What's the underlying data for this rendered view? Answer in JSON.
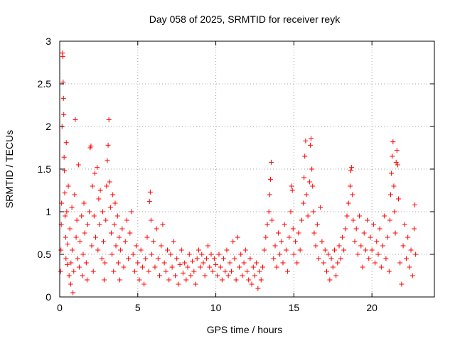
{
  "chart_data": {
    "type": "scatter",
    "title": "Day 058 of 2025, SRMTID for receiver reyk",
    "xlabel": "GPS time / hours",
    "ylabel": "SRMTID / TECUs",
    "xlim": [
      0,
      24
    ],
    "ylim": [
      0,
      3
    ],
    "xticks": [
      0,
      5,
      10,
      15,
      20
    ],
    "xtick_labels": [
      "0",
      "5",
      "10",
      "15",
      "20"
    ],
    "yticks": [
      0,
      0.5,
      1,
      1.5,
      2,
      2.5,
      3
    ],
    "ytick_labels": [
      "0",
      "0.5",
      "1",
      "1.5",
      "2",
      "2.5",
      "3"
    ],
    "grid": true,
    "marker": "+",
    "color": "#ff0000",
    "series": [
      {
        "name": "SRMTID",
        "points": [
          [
            0.05,
            0.3
          ],
          [
            0.08,
            0.55
          ],
          [
            0.1,
            0.85
          ],
          [
            0.12,
            1.1
          ],
          [
            0.15,
            2.0
          ],
          [
            0.18,
            2.86
          ],
          [
            0.2,
            2.82
          ],
          [
            0.22,
            2.52
          ],
          [
            0.24,
            2.33
          ],
          [
            0.26,
            2.14
          ],
          [
            0.28,
            1.64
          ],
          [
            0.3,
            1.48
          ],
          [
            0.32,
            1.22
          ],
          [
            0.35,
            0.95
          ],
          [
            0.38,
            0.7
          ],
          [
            0.4,
            0.45
          ],
          [
            0.42,
            1.81
          ],
          [
            0.45,
            1.0
          ],
          [
            0.48,
            0.38
          ],
          [
            0.5,
            0.62
          ],
          [
            0.55,
            1.3
          ],
          [
            0.6,
            0.25
          ],
          [
            0.65,
            0.8
          ],
          [
            0.7,
            0.15
          ],
          [
            0.72,
            0.4
          ],
          [
            0.78,
            1.05
          ],
          [
            0.8,
            0.55
          ],
          [
            0.85,
            0.05
          ],
          [
            0.9,
            0.3
          ],
          [
            0.95,
            1.2
          ],
          [
            1.0,
            2.08
          ],
          [
            1.05,
            0.7
          ],
          [
            1.1,
            0.9
          ],
          [
            1.15,
            0.45
          ],
          [
            1.2,
            1.55
          ],
          [
            1.25,
            0.35
          ],
          [
            1.3,
            0.65
          ],
          [
            1.4,
            0.95
          ],
          [
            1.45,
            0.25
          ],
          [
            1.5,
            0.5
          ],
          [
            1.55,
            1.1
          ],
          [
            1.6,
            0.75
          ],
          [
            1.7,
            0.4
          ],
          [
            1.75,
            0.2
          ],
          [
            1.8,
            0.85
          ],
          [
            1.9,
            1.0
          ],
          [
            1.95,
            1.75
          ],
          [
            2.0,
            1.77
          ],
          [
            2.05,
            0.6
          ],
          [
            2.1,
            1.3
          ],
          [
            2.15,
            0.3
          ],
          [
            2.2,
            0.95
          ],
          [
            2.25,
            1.45
          ],
          [
            2.3,
            0.7
          ],
          [
            2.4,
            1.52
          ],
          [
            2.45,
            0.55
          ],
          [
            2.5,
            1.15
          ],
          [
            2.55,
            0.85
          ],
          [
            2.6,
            1.25
          ],
          [
            2.7,
            0.45
          ],
          [
            2.75,
            1.0
          ],
          [
            2.8,
            0.65
          ],
          [
            2.85,
            0.2
          ],
          [
            2.9,
            0.4
          ],
          [
            2.95,
            0.9
          ],
          [
            3.0,
            1.3
          ],
          [
            3.05,
            1.6
          ],
          [
            3.1,
            1.78
          ],
          [
            3.15,
            2.08
          ],
          [
            3.2,
            1.35
          ],
          [
            3.25,
            1.05
          ],
          [
            3.3,
            0.75
          ],
          [
            3.35,
            0.5
          ],
          [
            3.4,
            1.2
          ],
          [
            3.45,
            0.3
          ],
          [
            3.5,
            0.85
          ],
          [
            3.55,
            1.1
          ],
          [
            3.6,
            0.6
          ],
          [
            3.7,
            0.95
          ],
          [
            3.75,
            0.4
          ],
          [
            3.8,
            0.7
          ],
          [
            3.85,
            0.2
          ],
          [
            3.9,
            0.55
          ],
          [
            4.0,
            0.8
          ],
          [
            4.1,
            0.35
          ],
          [
            4.2,
            0.65
          ],
          [
            4.3,
            0.9
          ],
          [
            4.4,
            0.45
          ],
          [
            4.5,
            0.75
          ],
          [
            4.6,
            1.0
          ],
          [
            4.7,
            0.5
          ],
          [
            4.8,
            0.3
          ],
          [
            4.9,
            0.6
          ],
          [
            5.0,
            0.4
          ],
          [
            5.1,
            0.2
          ],
          [
            5.2,
            0.55
          ],
          [
            5.3,
            0.35
          ],
          [
            5.4,
            0.15
          ],
          [
            5.5,
            0.45
          ],
          [
            5.6,
            0.7
          ],
          [
            5.7,
            0.3
          ],
          [
            5.75,
            1.12
          ],
          [
            5.8,
            1.23
          ],
          [
            5.85,
            0.9
          ],
          [
            5.9,
            0.5
          ],
          [
            6.0,
            0.65
          ],
          [
            6.1,
            0.35
          ],
          [
            6.2,
            0.8
          ],
          [
            6.3,
            0.45
          ],
          [
            6.4,
            0.25
          ],
          [
            6.5,
            0.6
          ],
          [
            6.6,
            0.85
          ],
          [
            6.7,
            0.4
          ],
          [
            6.8,
            0.3
          ],
          [
            6.9,
            0.55
          ],
          [
            7.0,
            0.2
          ],
          [
            7.1,
            0.5
          ],
          [
            7.2,
            0.35
          ],
          [
            7.3,
            0.65
          ],
          [
            7.4,
            0.25
          ],
          [
            7.5,
            0.45
          ],
          [
            7.6,
            0.15
          ],
          [
            7.7,
            0.38
          ],
          [
            7.8,
            0.55
          ],
          [
            7.9,
            0.28
          ],
          [
            8.0,
            0.4
          ],
          [
            8.1,
            0.2
          ],
          [
            8.2,
            0.35
          ],
          [
            8.3,
            0.5
          ],
          [
            8.4,
            0.25
          ],
          [
            8.5,
            0.42
          ],
          [
            8.6,
            0.3
          ],
          [
            8.7,
            0.15
          ],
          [
            8.8,
            0.45
          ],
          [
            8.9,
            0.55
          ],
          [
            9.0,
            0.35
          ],
          [
            9.1,
            0.5
          ],
          [
            9.2,
            0.4
          ],
          [
            9.3,
            0.25
          ],
          [
            9.4,
            0.45
          ],
          [
            9.5,
            0.6
          ],
          [
            9.6,
            0.35
          ],
          [
            9.7,
            0.5
          ],
          [
            9.8,
            0.3
          ],
          [
            9.9,
            0.45
          ],
          [
            10.0,
            0.38
          ],
          [
            10.1,
            0.25
          ],
          [
            10.2,
            0.5
          ],
          [
            10.3,
            0.35
          ],
          [
            10.4,
            0.2
          ],
          [
            10.5,
            0.45
          ],
          [
            10.6,
            0.3
          ],
          [
            10.7,
            0.55
          ],
          [
            10.8,
            0.25
          ],
          [
            10.9,
            0.4
          ],
          [
            11.0,
            0.3
          ],
          [
            11.1,
            0.65
          ],
          [
            11.2,
            0.45
          ],
          [
            11.3,
            0.2
          ],
          [
            11.4,
            0.7
          ],
          [
            11.5,
            0.35
          ],
          [
            11.6,
            0.5
          ],
          [
            11.7,
            0.25
          ],
          [
            11.8,
            0.4
          ],
          [
            11.9,
            0.55
          ],
          [
            12.0,
            0.3
          ],
          [
            12.1,
            0.2
          ],
          [
            12.2,
            0.45
          ],
          [
            12.3,
            0.15
          ],
          [
            12.4,
            0.35
          ],
          [
            12.5,
            0.25
          ],
          [
            12.6,
            0.4
          ],
          [
            12.7,
            0.1
          ],
          [
            12.8,
            0.3
          ],
          [
            12.9,
            0.2
          ],
          [
            13.0,
            0.35
          ],
          [
            13.1,
            0.55
          ],
          [
            13.2,
            0.7
          ],
          [
            13.3,
            0.85
          ],
          [
            13.4,
            1.0
          ],
          [
            13.45,
            1.2
          ],
          [
            13.5,
            1.38
          ],
          [
            13.55,
            1.58
          ],
          [
            13.6,
            0.9
          ],
          [
            13.7,
            0.45
          ],
          [
            13.8,
            0.6
          ],
          [
            13.9,
            0.35
          ],
          [
            14.0,
            0.75
          ],
          [
            14.1,
            0.5
          ],
          [
            14.2,
            0.65
          ],
          [
            14.3,
            0.4
          ],
          [
            14.4,
            0.85
          ],
          [
            14.5,
            0.55
          ],
          [
            14.6,
            0.3
          ],
          [
            14.7,
            0.7
          ],
          [
            14.8,
            1.0
          ],
          [
            14.85,
            1.3
          ],
          [
            14.9,
            1.25
          ],
          [
            14.95,
            0.8
          ],
          [
            15.0,
            0.5
          ],
          [
            15.1,
            0.65
          ],
          [
            15.2,
            0.4
          ],
          [
            15.3,
            0.75
          ],
          [
            15.4,
            0.55
          ],
          [
            15.5,
            0.9
          ],
          [
            15.6,
            1.1
          ],
          [
            15.65,
            1.4
          ],
          [
            15.7,
            1.65
          ],
          [
            15.75,
            1.83
          ],
          [
            15.8,
            1.2
          ],
          [
            15.9,
            0.95
          ],
          [
            16.0,
            1.35
          ],
          [
            16.05,
            1.78
          ],
          [
            16.1,
            1.86
          ],
          [
            16.15,
            1.5
          ],
          [
            16.2,
            1.3
          ],
          [
            16.25,
            1.0
          ],
          [
            16.3,
            0.75
          ],
          [
            16.4,
            0.6
          ],
          [
            16.5,
            0.85
          ],
          [
            16.6,
            0.45
          ],
          [
            16.7,
            1.05
          ],
          [
            16.8,
            0.65
          ],
          [
            16.9,
            0.4
          ],
          [
            17.0,
            0.55
          ],
          [
            17.1,
            0.3
          ],
          [
            17.2,
            0.5
          ],
          [
            17.3,
            0.2
          ],
          [
            17.4,
            0.45
          ],
          [
            17.5,
            0.35
          ],
          [
            17.6,
            0.55
          ],
          [
            17.7,
            0.25
          ],
          [
            17.8,
            0.4
          ],
          [
            17.9,
            0.6
          ],
          [
            18.0,
            0.45
          ],
          [
            18.1,
            0.7
          ],
          [
            18.2,
            0.55
          ],
          [
            18.3,
            0.8
          ],
          [
            18.4,
            0.95
          ],
          [
            18.5,
            1.1
          ],
          [
            18.6,
            1.3
          ],
          [
            18.65,
            1.48
          ],
          [
            18.7,
            1.52
          ],
          [
            18.75,
            1.2
          ],
          [
            18.8,
            0.9
          ],
          [
            18.9,
            0.65
          ],
          [
            19.0,
            0.8
          ],
          [
            19.1,
            0.5
          ],
          [
            19.2,
            0.95
          ],
          [
            19.3,
            0.6
          ],
          [
            19.4,
            0.35
          ],
          [
            19.5,
            0.75
          ],
          [
            19.6,
            0.55
          ],
          [
            19.7,
            0.9
          ],
          [
            19.8,
            0.45
          ],
          [
            19.9,
            0.7
          ],
          [
            20.0,
            0.55
          ],
          [
            20.1,
            0.85
          ],
          [
            20.2,
            0.4
          ],
          [
            20.3,
            0.65
          ],
          [
            20.4,
            0.5
          ],
          [
            20.5,
            0.8
          ],
          [
            20.6,
            0.35
          ],
          [
            20.7,
            0.6
          ],
          [
            20.8,
            0.95
          ],
          [
            20.9,
            0.45
          ],
          [
            21.0,
            0.7
          ],
          [
            21.1,
            0.3
          ],
          [
            21.15,
            0.9
          ],
          [
            21.2,
            1.2
          ],
          [
            21.25,
            1.45
          ],
          [
            21.3,
            1.65
          ],
          [
            21.35,
            1.82
          ],
          [
            21.4,
            1.3
          ],
          [
            21.45,
            1.0
          ],
          [
            21.5,
            0.75
          ],
          [
            21.55,
            1.58
          ],
          [
            21.6,
            1.72
          ],
          [
            21.65,
            1.55
          ],
          [
            21.7,
            1.15
          ],
          [
            21.8,
            0.4
          ],
          [
            21.9,
            0.15
          ],
          [
            22.0,
            0.6
          ],
          [
            22.1,
            0.85
          ],
          [
            22.2,
            0.45
          ],
          [
            22.3,
            0.7
          ],
          [
            22.4,
            0.35
          ],
          [
            22.5,
            0.55
          ],
          [
            22.6,
            0.25
          ],
          [
            22.7,
            0.8
          ],
          [
            22.75,
            1.08
          ],
          [
            22.8,
            0.5
          ]
        ]
      }
    ]
  }
}
